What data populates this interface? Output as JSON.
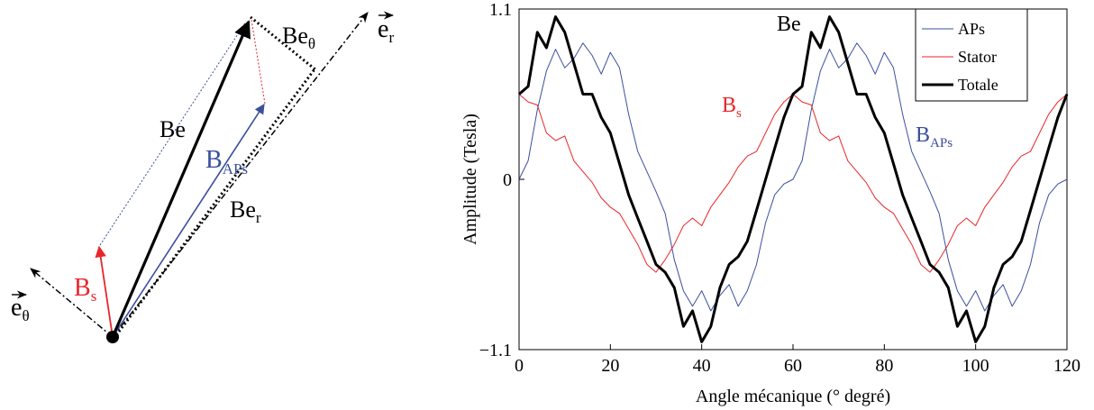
{
  "vector_diagram": {
    "labels": {
      "be": "Be",
      "be_theta_main": "Be",
      "be_theta_sub": "θ",
      "e_r_main": "e",
      "e_r_sub": "r",
      "b_aps_main": "B",
      "b_aps_sub": "APs",
      "be_r_main": "Be",
      "be_r_sub": "r",
      "b_s_main": "B",
      "b_s_sub": "s",
      "e_theta_main": "e",
      "e_theta_sub": "θ"
    },
    "colors": {
      "black": "#000000",
      "red": "#e8262b",
      "blue": "#3a4f9e"
    }
  },
  "chart_data": {
    "type": "line",
    "xlabel": "Angle mécanique (° degré)",
    "ylabel": "Amplitude (Tesla)",
    "xlim": [
      0,
      120
    ],
    "ylim": [
      -1.1,
      1.1
    ],
    "xticks": [
      0,
      20,
      40,
      60,
      80,
      100,
      120
    ],
    "yticks": [
      -1.1,
      0,
      1.1
    ],
    "xtick_labels": [
      "0",
      "20",
      "40",
      "60",
      "80",
      "100",
      "120"
    ],
    "ytick_labels": [
      "−1.1",
      "0",
      "1.1"
    ],
    "grid": false,
    "legend": {
      "position": "top-right",
      "entries": [
        "APs",
        "Stator",
        "Totale"
      ]
    },
    "annotations": {
      "be": "Be",
      "bs_main": "B",
      "bs_sub": "s",
      "baps_main": "B",
      "baps_sub": "APs"
    },
    "series": [
      {
        "name": "APs",
        "color": "#3a4f9e",
        "x": [
          0,
          2,
          4,
          6,
          8,
          10,
          12,
          14,
          16,
          18,
          20,
          22,
          24,
          26,
          28,
          30,
          32,
          34,
          36,
          38,
          40,
          42,
          44,
          46,
          48,
          50,
          52,
          54,
          56,
          58,
          60,
          62,
          64,
          66,
          68,
          70,
          72,
          74,
          76,
          78,
          80,
          82,
          84,
          86,
          88,
          90,
          92,
          94,
          96,
          98,
          100,
          102,
          104,
          106,
          108,
          110,
          112,
          114,
          116,
          118,
          120
        ],
        "y": [
          0.0,
          0.12,
          0.45,
          0.7,
          0.84,
          0.72,
          0.78,
          0.88,
          0.8,
          0.68,
          0.82,
          0.72,
          0.42,
          0.18,
          0.05,
          -0.08,
          -0.22,
          -0.52,
          -0.72,
          -0.82,
          -0.72,
          -0.85,
          -0.75,
          -0.68,
          -0.82,
          -0.72,
          -0.55,
          -0.28,
          -0.1,
          -0.03,
          0.0,
          0.12,
          0.45,
          0.7,
          0.84,
          0.72,
          0.78,
          0.88,
          0.8,
          0.68,
          0.82,
          0.72,
          0.42,
          0.18,
          0.05,
          -0.08,
          -0.22,
          -0.52,
          -0.72,
          -0.82,
          -0.72,
          -0.85,
          -0.75,
          -0.68,
          -0.82,
          -0.72,
          -0.55,
          -0.28,
          -0.1,
          -0.03,
          0.0
        ]
      },
      {
        "name": "Stator",
        "color": "#e8262b",
        "x": [
          0,
          2,
          4,
          6,
          8,
          10,
          12,
          14,
          16,
          18,
          20,
          22,
          24,
          26,
          28,
          30,
          32,
          34,
          36,
          38,
          40,
          42,
          44,
          46,
          48,
          50,
          52,
          54,
          56,
          58,
          60,
          62,
          64,
          66,
          68,
          70,
          72,
          74,
          76,
          78,
          80,
          82,
          84,
          86,
          88,
          90,
          92,
          94,
          96,
          98,
          100,
          102,
          104,
          106,
          108,
          110,
          112,
          114,
          116,
          118,
          120
        ],
        "y": [
          0.55,
          0.5,
          0.48,
          0.3,
          0.25,
          0.28,
          0.12,
          0.05,
          -0.02,
          -0.12,
          -0.18,
          -0.22,
          -0.32,
          -0.42,
          -0.55,
          -0.6,
          -0.52,
          -0.42,
          -0.3,
          -0.25,
          -0.3,
          -0.18,
          -0.1,
          -0.02,
          0.08,
          0.15,
          0.18,
          0.3,
          0.42,
          0.5,
          0.55,
          0.5,
          0.48,
          0.3,
          0.25,
          0.28,
          0.12,
          0.05,
          -0.02,
          -0.12,
          -0.18,
          -0.22,
          -0.32,
          -0.42,
          -0.55,
          -0.6,
          -0.52,
          -0.42,
          -0.3,
          -0.25,
          -0.3,
          -0.18,
          -0.1,
          -0.02,
          0.08,
          0.15,
          0.18,
          0.3,
          0.42,
          0.5,
          0.55
        ]
      },
      {
        "name": "Totale",
        "color": "#000000",
        "x": [
          0,
          2,
          4,
          6,
          8,
          10,
          12,
          14,
          16,
          18,
          20,
          22,
          24,
          26,
          28,
          30,
          32,
          34,
          36,
          38,
          40,
          42,
          44,
          46,
          48,
          50,
          52,
          54,
          56,
          58,
          60,
          62,
          64,
          66,
          68,
          70,
          72,
          74,
          76,
          78,
          80,
          82,
          84,
          86,
          88,
          90,
          92,
          94,
          96,
          98,
          100,
          102,
          104,
          106,
          108,
          110,
          112,
          114,
          116,
          118,
          120
        ],
        "y": [
          0.55,
          0.6,
          0.95,
          0.85,
          1.05,
          0.95,
          0.75,
          0.55,
          0.55,
          0.4,
          0.3,
          0.1,
          -0.1,
          -0.25,
          -0.4,
          -0.55,
          -0.6,
          -0.7,
          -0.95,
          -0.85,
          -1.05,
          -0.95,
          -0.7,
          -0.55,
          -0.5,
          -0.4,
          -0.2,
          0.0,
          0.2,
          0.4,
          0.55,
          0.6,
          0.95,
          0.85,
          1.05,
          0.95,
          0.75,
          0.55,
          0.55,
          0.4,
          0.3,
          0.1,
          -0.1,
          -0.25,
          -0.4,
          -0.55,
          -0.6,
          -0.7,
          -0.95,
          -0.85,
          -1.05,
          -0.95,
          -0.7,
          -0.55,
          -0.5,
          -0.4,
          -0.2,
          0.0,
          0.2,
          0.4,
          0.55
        ]
      }
    ]
  }
}
